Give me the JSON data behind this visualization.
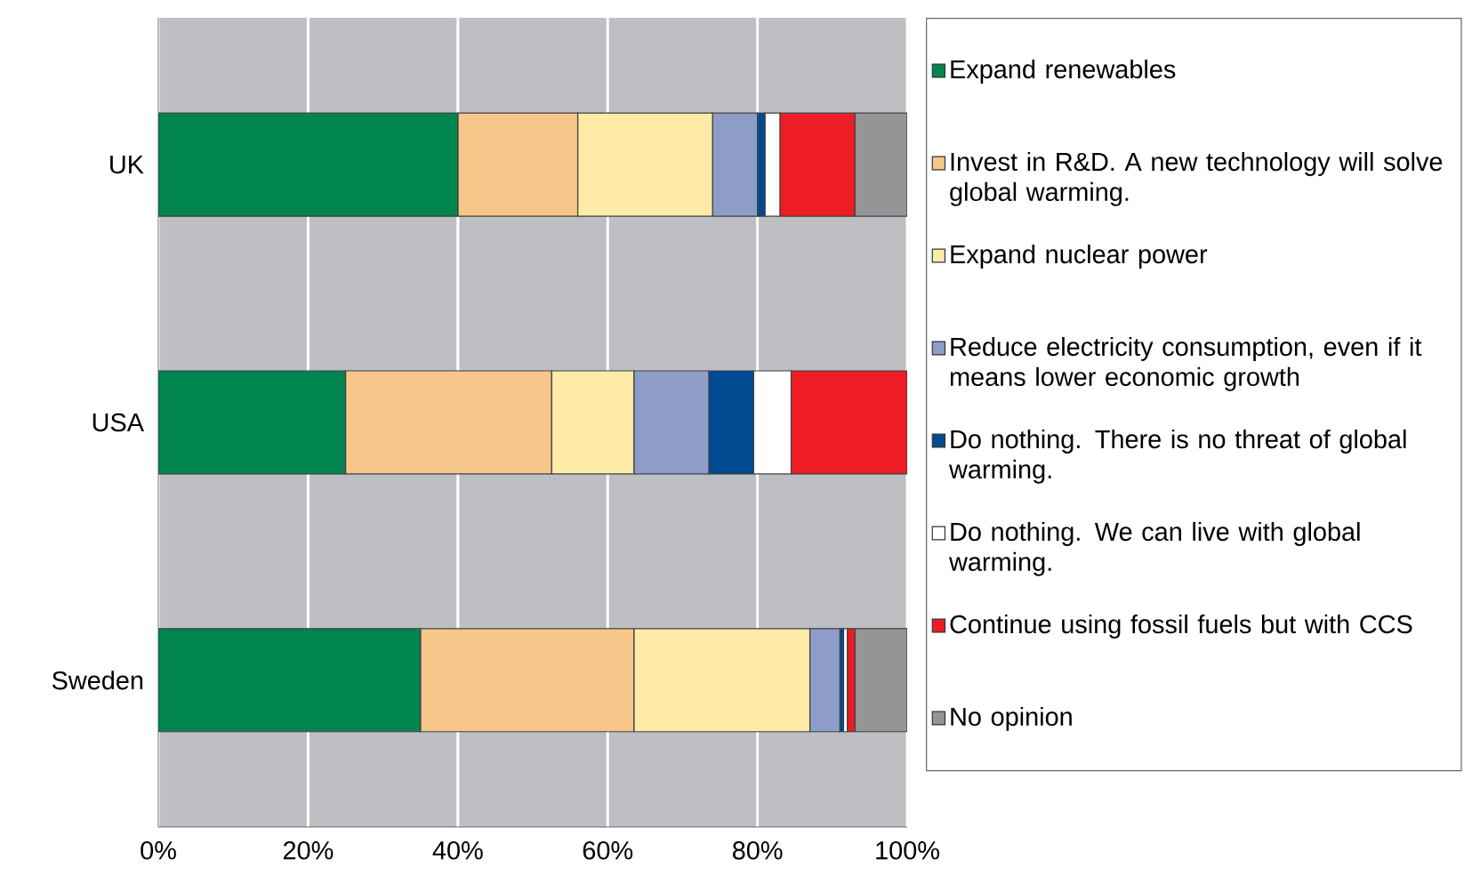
{
  "chart_data": {
    "type": "bar",
    "orientation": "horizontal",
    "stacked": true,
    "categories": [
      "UK",
      "USA",
      "Sweden"
    ],
    "series": [
      {
        "name": "Expand renewables",
        "color": "#00854f",
        "values": [
          40,
          25,
          35
        ]
      },
      {
        "name": "Invest in R&D. A new technology will solve global warming.",
        "color": "#f7c68b",
        "values": [
          16,
          27.5,
          28.5
        ]
      },
      {
        "name": "Expand nuclear power",
        "color": "#feeba7",
        "values": [
          18,
          11,
          23.5
        ]
      },
      {
        "name": "Reduce electricity consumption, even if it means lower economic growth",
        "color": "#8e9dc8",
        "values": [
          6,
          10,
          4
        ]
      },
      {
        "name": "Do nothing. There is no threat of global warming.",
        "color": "#004a91",
        "values": [
          1,
          6,
          0.5
        ]
      },
      {
        "name": "Do nothing. We can live with global warming.",
        "color": "#ffffff",
        "values": [
          2,
          5,
          0.5
        ]
      },
      {
        "name": "Continue using fossil fuels but with CCS",
        "color": "#ee1c25",
        "values": [
          10,
          15.5,
          1
        ]
      },
      {
        "name": "No opinion",
        "color": "#959597",
        "values": [
          7,
          0,
          7
        ]
      }
    ],
    "xlim": [
      0,
      100
    ],
    "xticks": [
      {
        "value": 0,
        "label": "0%"
      },
      {
        "value": 20,
        "label": "20%"
      },
      {
        "value": 40,
        "label": "40%"
      },
      {
        "value": 60,
        "label": "60%"
      },
      {
        "value": 80,
        "label": "80%"
      },
      {
        "value": 100,
        "label": "100%"
      }
    ],
    "grid": "x",
    "legend": "right"
  }
}
